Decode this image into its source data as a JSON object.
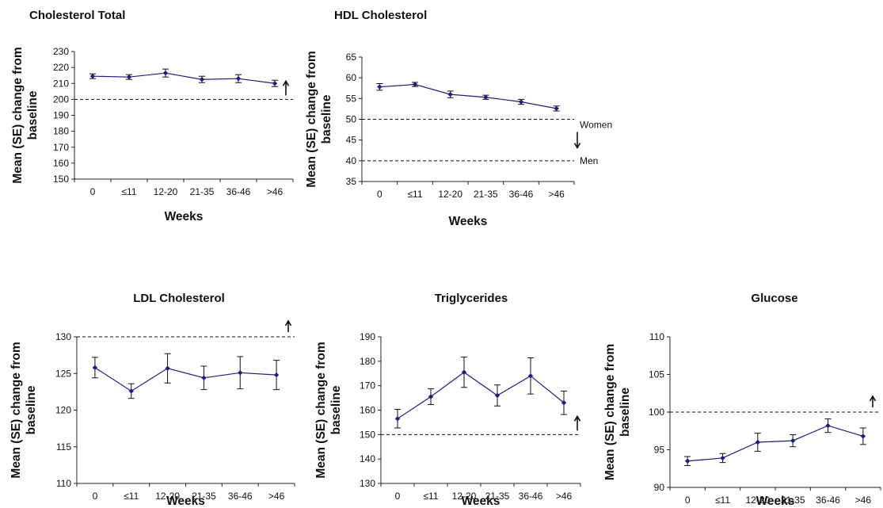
{
  "chart_data": [
    {
      "id": "chol",
      "type": "line",
      "title": "Cholesterol Total",
      "xlabel": "Weeks",
      "ylabel": [
        "Mean (SE) change from",
        "baseline"
      ],
      "categories": [
        "0",
        "≤11",
        "12-20",
        "21-35",
        "36-46",
        ">46"
      ],
      "values": [
        214.5,
        214,
        216.5,
        212.5,
        213,
        210
      ],
      "errors": [
        1.5,
        1.5,
        2.5,
        2,
        2.5,
        2
      ],
      "ylim": [
        150,
        230
      ],
      "yticks": [
        150,
        160,
        170,
        180,
        190,
        200,
        210,
        220,
        230
      ],
      "reference_lines": [
        {
          "y": 200,
          "label": ""
        }
      ],
      "arrows": [
        {
          "direction": "up"
        }
      ]
    },
    {
      "id": "hdl",
      "type": "line",
      "title": "HDL Cholesterol",
      "xlabel": "Weeks",
      "ylabel": [
        "Mean (SE) change from",
        "baseline"
      ],
      "categories": [
        "0",
        "≤11",
        "12-20",
        "21-35",
        "36-46",
        ">46"
      ],
      "values": [
        57.8,
        58.4,
        56,
        55.3,
        54.2,
        52.6
      ],
      "errors": [
        0.8,
        0.5,
        0.8,
        0.5,
        0.6,
        0.6
      ],
      "ylim": [
        35,
        65
      ],
      "yticks": [
        35,
        40,
        45,
        50,
        55,
        60,
        65
      ],
      "reference_lines": [
        {
          "y": 50,
          "label": "Women"
        },
        {
          "y": 40,
          "label": "Men"
        }
      ],
      "arrows": [
        {
          "direction": "down"
        }
      ]
    },
    {
      "id": "ldl",
      "type": "line",
      "title": "LDL Cholesterol",
      "xlabel": "Weeks",
      "ylabel": [
        "Mean (SE) change from",
        "baseline"
      ],
      "categories": [
        "0",
        "≤11",
        "12-20",
        "21-35",
        "36-46",
        ">46"
      ],
      "values": [
        125.8,
        122.6,
        125.7,
        124.4,
        125.1,
        124.8
      ],
      "errors": [
        1.4,
        1,
        2,
        1.6,
        2.2,
        2
      ],
      "ylim": [
        110,
        130
      ],
      "yticks": [
        110,
        115,
        120,
        125,
        130
      ],
      "reference_lines": [
        {
          "y": 130,
          "label": ""
        }
      ],
      "arrows": [
        {
          "direction": "up"
        }
      ]
    },
    {
      "id": "trig",
      "type": "line",
      "title": "Triglycerides",
      "xlabel": "Weeks",
      "ylabel": [
        "Mean (SE) change from",
        "baseline"
      ],
      "categories": [
        "0",
        "≤11",
        "12-20",
        "21-35",
        "36-46",
        ">46"
      ],
      "values": [
        156.5,
        165.5,
        175.5,
        166,
        174,
        163
      ],
      "errors": [
        3.8,
        3.2,
        6.2,
        4.3,
        7.4,
        4.8
      ],
      "ylim": [
        130,
        190
      ],
      "yticks": [
        130,
        140,
        150,
        160,
        170,
        180,
        190
      ],
      "reference_lines": [
        {
          "y": 150,
          "label": ""
        }
      ],
      "arrows": [
        {
          "direction": "up"
        }
      ]
    },
    {
      "id": "gluc",
      "type": "line",
      "title": "Glucose",
      "xlabel": "Weeks",
      "ylabel": [
        "Mean (SE) change from",
        "baseline"
      ],
      "categories": [
        "0",
        "≤11",
        "12-20",
        "21-35",
        "36-46",
        ">46"
      ],
      "values": [
        93.5,
        93.9,
        96,
        96.2,
        98.2,
        96.8
      ],
      "errors": [
        0.6,
        0.6,
        1.2,
        0.8,
        0.9,
        1.1
      ],
      "ylim": [
        90,
        110
      ],
      "yticks": [
        90,
        95,
        100,
        105,
        110
      ],
      "reference_lines": [
        {
          "y": 100,
          "label": ""
        }
      ],
      "arrows": [
        {
          "direction": "up"
        }
      ]
    }
  ]
}
